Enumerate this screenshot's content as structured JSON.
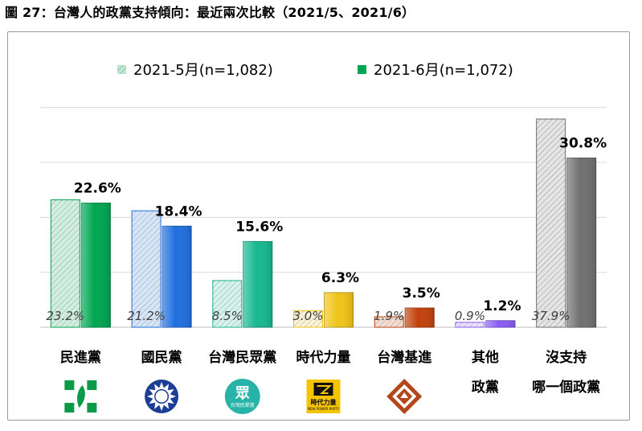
{
  "figure": {
    "title": "圖 27：台灣人的政黨支持傾向：最近兩次比較（2021/5、2021/6）"
  },
  "chart_data": {
    "type": "bar",
    "ylim": [
      0,
      42
    ],
    "grid": true,
    "legend_position": "top",
    "categories": [
      "民進黨",
      "國民黨",
      "台灣民眾黨",
      "時代力量",
      "台灣基進",
      "其他政黨",
      "沒支持哪一個政黨"
    ],
    "category_lines": [
      [
        "民進黨"
      ],
      [
        "國民黨"
      ],
      [
        "台灣民眾黨"
      ],
      [
        "時代力量"
      ],
      [
        "台灣基進"
      ],
      [
        "其他",
        "政黨"
      ],
      [
        "沒支持",
        "哪一個政黨"
      ]
    ],
    "series": [
      {
        "name": "2021-5月(n=1,082)",
        "values": [
          23.2,
          21.2,
          8.5,
          3.0,
          1.9,
          0.9,
          37.9
        ],
        "labels": [
          "23.2%",
          "21.2%",
          "8.5%",
          "3.0%",
          "1.9%",
          "0.9%",
          "37.9%"
        ],
        "style": "hatched"
      },
      {
        "name": "2021-6月(n=1,072)",
        "values": [
          22.6,
          18.4,
          15.6,
          6.3,
          3.5,
          1.2,
          30.8
        ],
        "labels": [
          "22.6%",
          "18.4%",
          "15.6%",
          "6.3%",
          "3.5%",
          "1.2%",
          "30.8%"
        ],
        "style": "solid"
      }
    ],
    "colors": [
      "#00a651",
      "#1f6fe0",
      "#17b890",
      "#f0c419",
      "#c2410c",
      "#8b5cf6",
      "#707070"
    ],
    "logos": [
      {
        "name": "dpp-logo",
        "text": ""
      },
      {
        "name": "kmt-logo",
        "text": ""
      },
      {
        "name": "tpp-logo",
        "text": "眾",
        "subtext": "台灣民眾黨"
      },
      {
        "name": "npp-logo",
        "text": "時代力量",
        "subtext": "NEW POWER PARTY"
      },
      {
        "name": "tsp-logo",
        "text": ""
      }
    ]
  }
}
